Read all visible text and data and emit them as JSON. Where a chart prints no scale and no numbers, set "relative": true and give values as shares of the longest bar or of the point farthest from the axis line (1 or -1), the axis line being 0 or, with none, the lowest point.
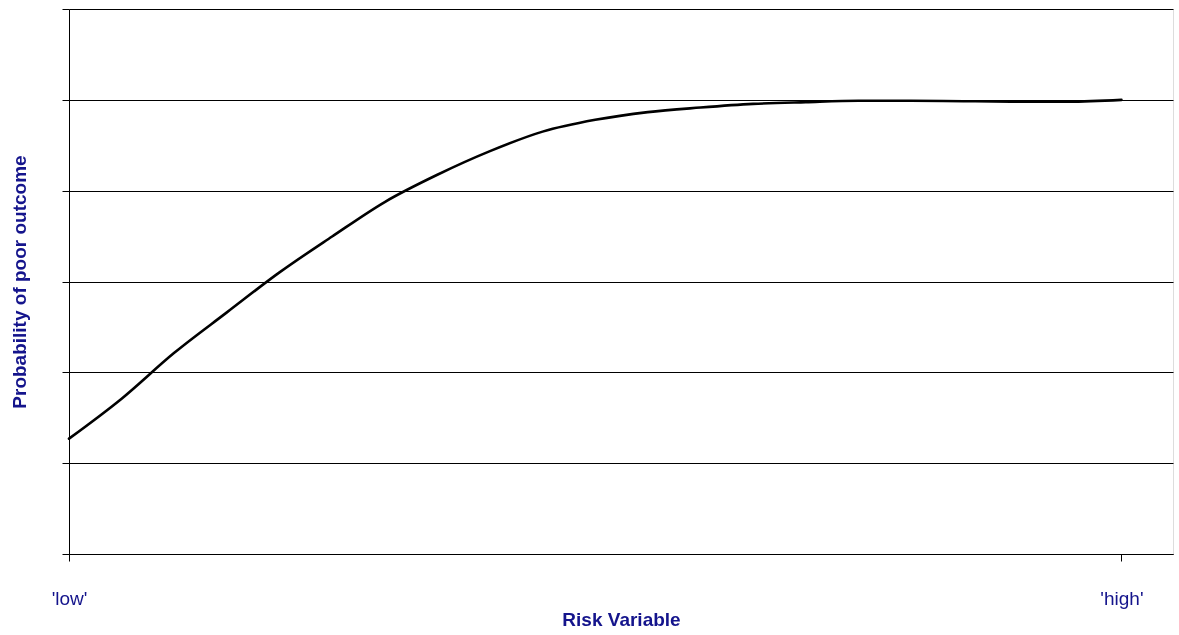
{
  "chart_data": {
    "type": "line",
    "relative": true,
    "xlabel": "Risk Variable",
    "ylabel": "Probability of poor outcome",
    "categories": [
      "'low'",
      null,
      null,
      null,
      null,
      null,
      null,
      null,
      null,
      null,
      null,
      null,
      null,
      null,
      null,
      null,
      null,
      null,
      null,
      null,
      "'high'"
    ],
    "series": [
      {
        "color": "#000000",
        "values": [
          0.254,
          0.342,
          0.443,
          0.532,
          0.62,
          0.699,
          0.775,
          0.835,
          0.887,
          0.93,
          0.956,
          0.973,
          0.983,
          0.991,
          0.995,
          0.998,
          0.998,
          0.997,
          0.996,
          0.996,
          1
        ]
      }
    ],
    "grid": "y",
    "marker": "none",
    "line_style": "solid"
  }
}
